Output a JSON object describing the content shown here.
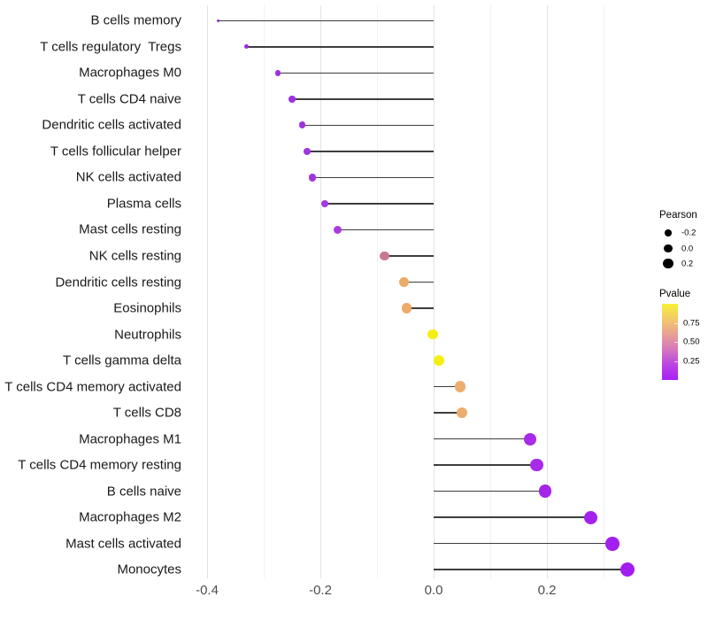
{
  "chart_data": {
    "type": "lollipop",
    "title": "",
    "xlabel": "",
    "ylabel": "",
    "grid": true,
    "x_axis": {
      "tick_labels": [
        "-0.4",
        "-0.2",
        "0.0",
        "0.2"
      ],
      "tick_values": [
        -0.4,
        -0.2,
        0.0,
        0.2
      ],
      "gridline_values": [
        -0.4,
        -0.3,
        -0.2,
        -0.1,
        0.0,
        0.1,
        0.2,
        0.3
      ],
      "range": [
        -0.433,
        0.383
      ]
    },
    "points": [
      {
        "label": "B cells memory",
        "pearson": -0.38,
        "pvalue": 0.05,
        "color": "#8e2bdb"
      },
      {
        "label": "T cells regulatory  Tregs",
        "pearson": -0.33,
        "pvalue": 0.04,
        "color": "#9a2be0"
      },
      {
        "label": "Macrophages M0",
        "pearson": -0.275,
        "pvalue": 0.05,
        "color": "#9c30de"
      },
      {
        "label": "T cells CD4 naive",
        "pearson": -0.25,
        "pvalue": 0.05,
        "color": "#9d31df"
      },
      {
        "label": "Dendritic cells activated",
        "pearson": -0.232,
        "pvalue": 0.06,
        "color": "#9f33df"
      },
      {
        "label": "T cells follicular helper",
        "pearson": -0.223,
        "pvalue": 0.06,
        "color": "#a133e0"
      },
      {
        "label": "NK cells activated",
        "pearson": -0.214,
        "pvalue": 0.06,
        "color": "#a235e0"
      },
      {
        "label": "Plasma cells",
        "pearson": -0.192,
        "pvalue": 0.07,
        "color": "#a537e2"
      },
      {
        "label": "Mast cells resting",
        "pearson": -0.17,
        "pvalue": 0.12,
        "color": "#ac3bde"
      },
      {
        "label": "NK cells resting",
        "pearson": -0.087,
        "pvalue": 0.45,
        "color": "#c97792"
      },
      {
        "label": "Dendritic cells resting",
        "pearson": -0.053,
        "pvalue": 0.62,
        "color": "#ecab67"
      },
      {
        "label": "Eosinophils",
        "pearson": -0.048,
        "pvalue": 0.62,
        "color": "#ecab67"
      },
      {
        "label": "Neutrophils",
        "pearson": -0.002,
        "pvalue": 0.97,
        "color": "#f5ef11"
      },
      {
        "label": "T cells gamma delta",
        "pearson": 0.01,
        "pvalue": 0.97,
        "color": "#f5ef11"
      },
      {
        "label": "T cells CD4 memory activated",
        "pearson": 0.047,
        "pvalue": 0.63,
        "color": "#edad6e"
      },
      {
        "label": "T cells CD8",
        "pearson": 0.05,
        "pvalue": 0.63,
        "color": "#edad6e"
      },
      {
        "label": "Macrophages M1",
        "pearson": 0.171,
        "pvalue": 0.03,
        "color": "#a72be8"
      },
      {
        "label": "T cells CD4 memory resting",
        "pearson": 0.182,
        "pvalue": 0.03,
        "color": "#a72be8"
      },
      {
        "label": "B cells naive",
        "pearson": 0.197,
        "pvalue": 0.02,
        "color": "#a524ea"
      },
      {
        "label": "Macrophages M2",
        "pearson": 0.277,
        "pvalue": 0.02,
        "color": "#a321ec"
      },
      {
        "label": "Mast cells activated",
        "pearson": 0.316,
        "pvalue": 0.01,
        "color": "#a31fed"
      },
      {
        "label": "Monocytes",
        "pearson": 0.342,
        "pvalue": 0.01,
        "color": "#a21eee"
      }
    ],
    "legend": {
      "position": "right",
      "size": {
        "title": "Pearson",
        "entries": [
          {
            "label": "-0.2",
            "value": -0.2
          },
          {
            "label": "0.0",
            "value": 0.0
          },
          {
            "label": "0.2",
            "value": 0.2
          }
        ],
        "dot_color": "#000000"
      },
      "color": {
        "title": "Pvalue",
        "tick_labels": [
          "0.75",
          "0.50",
          "0.25"
        ],
        "tick_values": [
          0.75,
          0.5,
          0.25
        ],
        "bar_range": [
          0,
          1
        ],
        "gradient_low": "#a722f5",
        "gradient_mid_pink": "#e8a194",
        "gradient_high": "#f9f02f",
        "gradient_stops_bottom_to_top": [
          "#a722f5",
          "#bc43e5",
          "#d677bc",
          "#e8a194",
          "#f3c96c",
          "#f9f033"
        ]
      }
    }
  }
}
